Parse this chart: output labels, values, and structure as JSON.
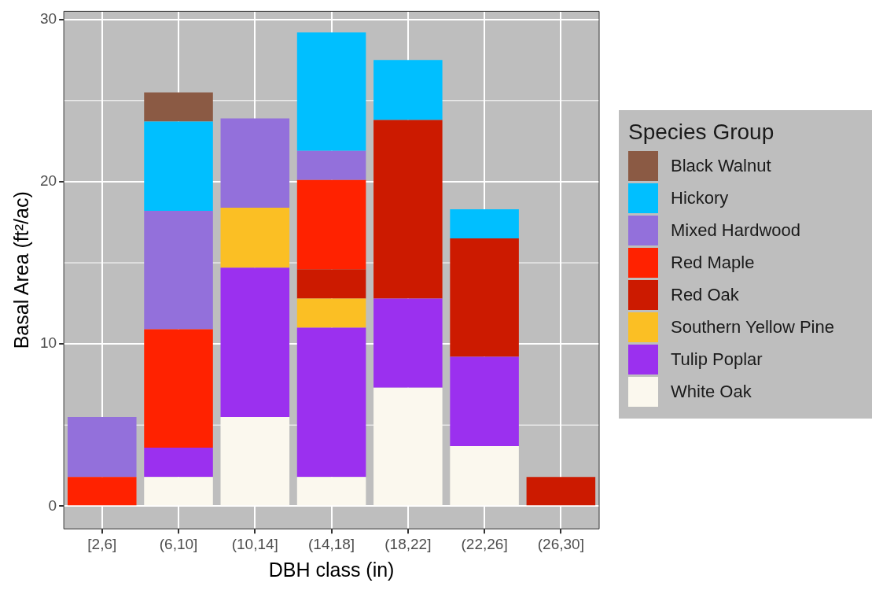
{
  "chart_data": {
    "type": "bar",
    "stacked": true,
    "xlabel": "DBH class (in)",
    "ylabel": "Basal Area (ft²/ac)",
    "legend_title": "Species Group",
    "legend": "right",
    "grid": true,
    "categories": [
      "[2,6]",
      "(6,10]",
      "(10,14]",
      "(14,18]",
      "(18,22]",
      "(22,26]",
      "(26,30]"
    ],
    "ylim": [
      -1.4,
      30.5
    ],
    "yticks": [
      0,
      10,
      20,
      30
    ],
    "series": [
      {
        "name": "White Oak",
        "color": "#fbf8ee",
        "values": [
          null,
          1.8,
          5.5,
          1.8,
          7.3,
          3.7,
          null
        ]
      },
      {
        "name": "Tulip Poplar",
        "color": "#9b30ef",
        "values": [
          null,
          1.8,
          9.2,
          9.2,
          5.5,
          5.5,
          null
        ]
      },
      {
        "name": "Southern Yellow Pine",
        "color": "#fbbf24",
        "values": [
          null,
          null,
          3.7,
          1.8,
          null,
          null,
          null
        ]
      },
      {
        "name": "Red Oak",
        "color": "#cc1a00",
        "values": [
          null,
          null,
          null,
          1.8,
          11.0,
          7.3,
          1.8
        ]
      },
      {
        "name": "Red Maple",
        "color": "#ff2200",
        "values": [
          1.8,
          7.3,
          null,
          5.5,
          null,
          null,
          null
        ]
      },
      {
        "name": "Mixed Hardwood",
        "color": "#9370db",
        "values": [
          3.7,
          7.3,
          5.5,
          1.8,
          null,
          null,
          null
        ]
      },
      {
        "name": "Hickory",
        "color": "#00bfff",
        "values": [
          null,
          5.5,
          null,
          7.3,
          3.7,
          1.8,
          null
        ]
      },
      {
        "name": "Black Walnut",
        "color": "#8b5a44",
        "values": [
          null,
          1.8,
          null,
          null,
          null,
          null,
          null
        ]
      }
    ]
  }
}
